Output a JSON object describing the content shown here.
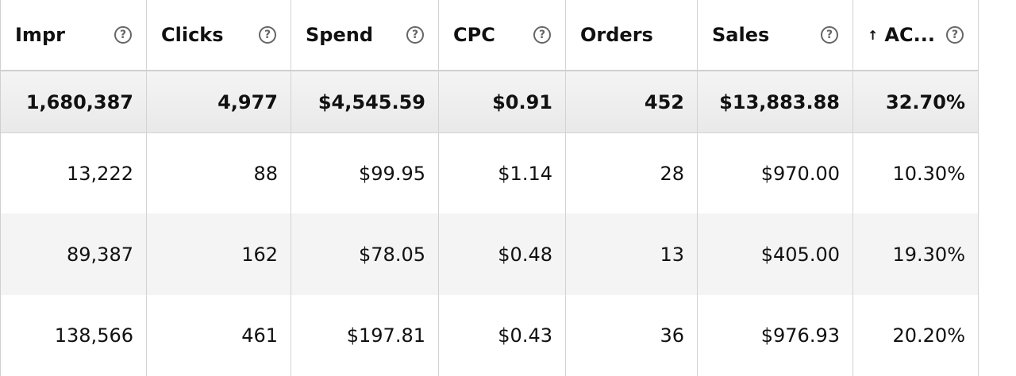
{
  "columns": [
    {
      "label": "Impr",
      "help": "?"
    },
    {
      "label": "Clicks",
      "help": "?"
    },
    {
      "label": "Spend",
      "help": "?"
    },
    {
      "label": "CPC",
      "help": "?"
    },
    {
      "label": "Orders"
    },
    {
      "label": "Sales",
      "help": "?"
    },
    {
      "label": "AC...",
      "help": "?",
      "sort": "↑"
    }
  ],
  "totals": [
    "1,680,387",
    "4,977",
    "$4,545.59",
    "$0.91",
    "452",
    "$13,883.88",
    "32.70%"
  ],
  "rows": [
    [
      "13,222",
      "88",
      "$99.95",
      "$1.14",
      "28",
      "$970.00",
      "10.30%"
    ],
    [
      "89,387",
      "162",
      "$78.05",
      "$0.48",
      "13",
      "$405.00",
      "19.30%"
    ],
    [
      "138,566",
      "461",
      "$197.81",
      "$0.43",
      "36",
      "$976.93",
      "20.20%"
    ]
  ],
  "colors": {
    "header_bg": "#ffffff",
    "total_bg": "#ececec",
    "stripe_bg": "#f4f4f4",
    "border": "#d3d3d3"
  },
  "icons": {
    "help": "help-circle-icon",
    "sort": "sort-ascending-icon"
  }
}
